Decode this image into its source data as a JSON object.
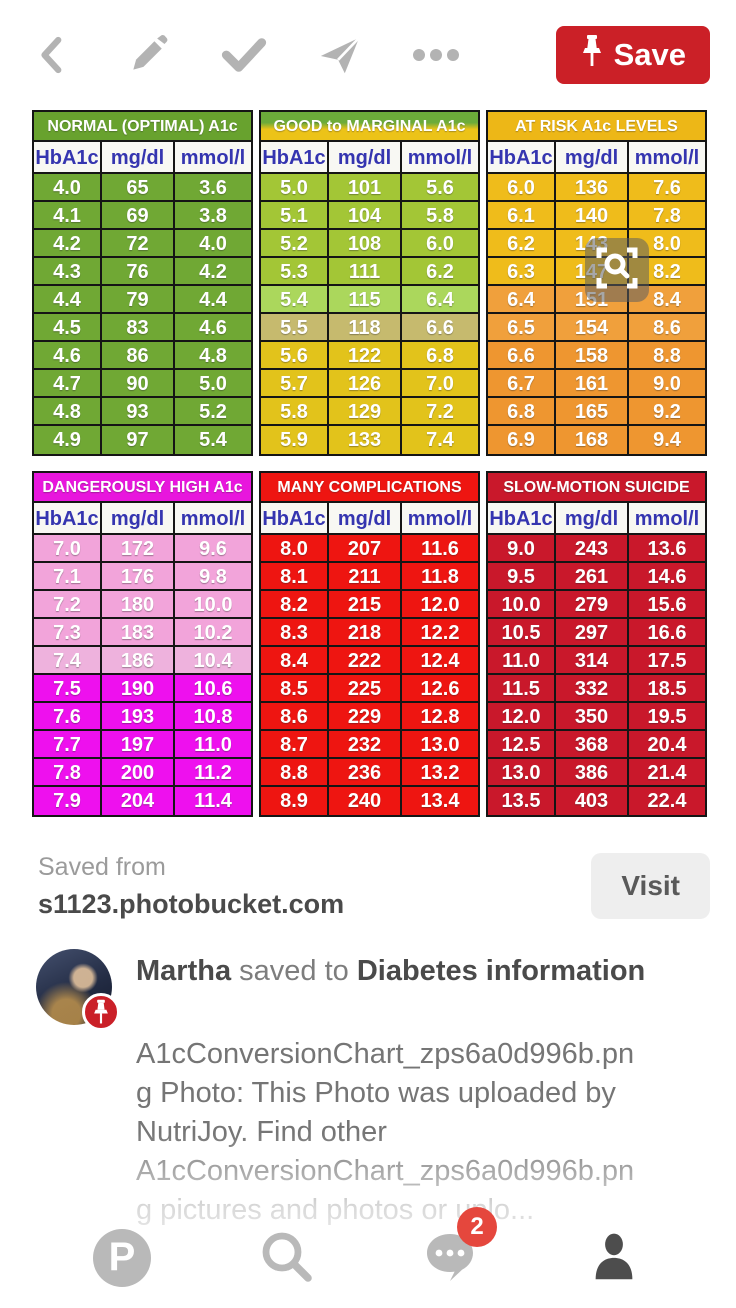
{
  "top_bar": {
    "back_icon": "chevron-left",
    "edit_icon": "pencil",
    "select_icon": "checkmark",
    "share_icon": "paper-plane",
    "more_icon": "ellipsis",
    "icon_color": "#b3b3b3",
    "save_label": "Save",
    "save_color": "#cb2027"
  },
  "chart": {
    "header": [
      "HbA1c",
      "mg/dl",
      "mmol/l"
    ],
    "header_text_color": "#3535b0",
    "tables": [
      {
        "title": "NORMAL (OPTIMAL) A1c",
        "title_bg": "#68a22e",
        "row_colors": [
          "#70a834",
          "#70a834",
          "#70a834",
          "#70a834",
          "#70a834",
          "#70a834",
          "#70a834",
          "#70a834",
          "#70a834",
          "#70a834"
        ],
        "rows": [
          [
            "4.0",
            "65",
            "3.6"
          ],
          [
            "4.1",
            "69",
            "3.8"
          ],
          [
            "4.2",
            "72",
            "4.0"
          ],
          [
            "4.3",
            "76",
            "4.2"
          ],
          [
            "4.4",
            "79",
            "4.4"
          ],
          [
            "4.5",
            "83",
            "4.6"
          ],
          [
            "4.6",
            "86",
            "4.8"
          ],
          [
            "4.7",
            "90",
            "5.0"
          ],
          [
            "4.8",
            "93",
            "5.2"
          ],
          [
            "4.9",
            "97",
            "5.4"
          ]
        ]
      },
      {
        "title": "GOOD to MARGINAL A1c",
        "title_bg": "#6cab3a",
        "title_bg2": "#ecc318",
        "row_colors": [
          "#a3c636",
          "#a3c636",
          "#a3c636",
          "#a3c636",
          "#abd75c",
          "#c6ba6e",
          "#e2c31b",
          "#e2c31b",
          "#e2c31b",
          "#e2c31b"
        ],
        "rows": [
          [
            "5.0",
            "101",
            "5.6"
          ],
          [
            "5.1",
            "104",
            "5.8"
          ],
          [
            "5.2",
            "108",
            "6.0"
          ],
          [
            "5.3",
            "111",
            "6.2"
          ],
          [
            "5.4",
            "115",
            "6.4"
          ],
          [
            "5.5",
            "118",
            "6.6"
          ],
          [
            "5.6",
            "122",
            "6.8"
          ],
          [
            "5.7",
            "126",
            "7.0"
          ],
          [
            "5.8",
            "129",
            "7.2"
          ],
          [
            "5.9",
            "133",
            "7.4"
          ]
        ]
      },
      {
        "title": "AT RISK A1c LEVELS",
        "title_bg": "#edb717",
        "row_colors": [
          "#efbc1b",
          "#efbc1b",
          "#efbc1b",
          "#efbc1b",
          "#f0a03c",
          "#f0a03c",
          "#ee9630",
          "#ee9630",
          "#ee9630",
          "#ee9630"
        ],
        "rows": [
          [
            "6.0",
            "136",
            "7.6"
          ],
          [
            "6.1",
            "140",
            "7.8"
          ],
          [
            "6.2",
            "143",
            "8.0"
          ],
          [
            "6.3",
            "147",
            "8.2"
          ],
          [
            "6.4",
            "151",
            "8.4"
          ],
          [
            "6.5",
            "154",
            "8.6"
          ],
          [
            "6.6",
            "158",
            "8.8"
          ],
          [
            "6.7",
            "161",
            "9.0"
          ],
          [
            "6.8",
            "165",
            "9.2"
          ],
          [
            "6.9",
            "168",
            "9.4"
          ]
        ]
      },
      {
        "title": "DANGEROUSLY HIGH A1c",
        "title_bg": "#e816dd",
        "row_colors": [
          "#f2a4da",
          "#f2a4da",
          "#f2a4da",
          "#f2a4da",
          "#eeb2dd",
          "#ee10ee",
          "#ee10ee",
          "#ee10ee",
          "#ee10ee",
          "#ee10ee"
        ],
        "rows": [
          [
            "7.0",
            "172",
            "9.6"
          ],
          [
            "7.1",
            "176",
            "9.8"
          ],
          [
            "7.2",
            "180",
            "10.0"
          ],
          [
            "7.3",
            "183",
            "10.2"
          ],
          [
            "7.4",
            "186",
            "10.4"
          ],
          [
            "7.5",
            "190",
            "10.6"
          ],
          [
            "7.6",
            "193",
            "10.8"
          ],
          [
            "7.7",
            "197",
            "11.0"
          ],
          [
            "7.8",
            "200",
            "11.2"
          ],
          [
            "7.9",
            "204",
            "11.4"
          ]
        ]
      },
      {
        "title": "MANY COMPLICATIONS",
        "title_bg": "#ee1511",
        "row_colors": [
          "#ee1511",
          "#ee1511",
          "#ee1511",
          "#ee1511",
          "#ee1511",
          "#ee1511",
          "#ee1511",
          "#ee1511",
          "#ee1511",
          "#ee1511"
        ],
        "rows": [
          [
            "8.0",
            "207",
            "11.6"
          ],
          [
            "8.1",
            "211",
            "11.8"
          ],
          [
            "8.2",
            "215",
            "12.0"
          ],
          [
            "8.3",
            "218",
            "12.2"
          ],
          [
            "8.4",
            "222",
            "12.4"
          ],
          [
            "8.5",
            "225",
            "12.6"
          ],
          [
            "8.6",
            "229",
            "12.8"
          ],
          [
            "8.7",
            "232",
            "13.0"
          ],
          [
            "8.8",
            "236",
            "13.2"
          ],
          [
            "8.9",
            "240",
            "13.4"
          ]
        ]
      },
      {
        "title": "SLOW-MOTION SUICIDE",
        "title_bg": "#c9182b",
        "row_colors": [
          "#c9182b",
          "#c9182b",
          "#c9182b",
          "#c9182b",
          "#c9182b",
          "#c9182b",
          "#c9182b",
          "#c9182b",
          "#c9182b",
          "#c9182b"
        ],
        "rows": [
          [
            "9.0",
            "243",
            "13.6"
          ],
          [
            "9.5",
            "261",
            "14.6"
          ],
          [
            "10.0",
            "279",
            "15.6"
          ],
          [
            "10.5",
            "297",
            "16.6"
          ],
          [
            "11.0",
            "314",
            "17.5"
          ],
          [
            "11.5",
            "332",
            "18.5"
          ],
          [
            "12.0",
            "350",
            "19.5"
          ],
          [
            "12.5",
            "368",
            "20.4"
          ],
          [
            "13.0",
            "386",
            "21.4"
          ],
          [
            "13.5",
            "403",
            "22.4"
          ]
        ]
      }
    ]
  },
  "source": {
    "saved_from": "Saved from",
    "domain": "s1123.photobucket.com",
    "visit_label": "Visit"
  },
  "attribution": {
    "user": "Martha",
    "action": "saved to",
    "board": "Diabetes information",
    "description_lines": [
      "A1cConversionChart_zps6a0d996b.pn",
      "g Photo: This Photo was uploaded by",
      "NutriJoy. Find other",
      "A1cConversionChart_zps6a0d996b.pn",
      "g pictures and photos or uplo..."
    ]
  },
  "bottom_nav": {
    "notification_count": "2",
    "badge_color": "#e5473d",
    "icon_color": "#b9b9b9",
    "active_color": "#4d4d4d"
  }
}
